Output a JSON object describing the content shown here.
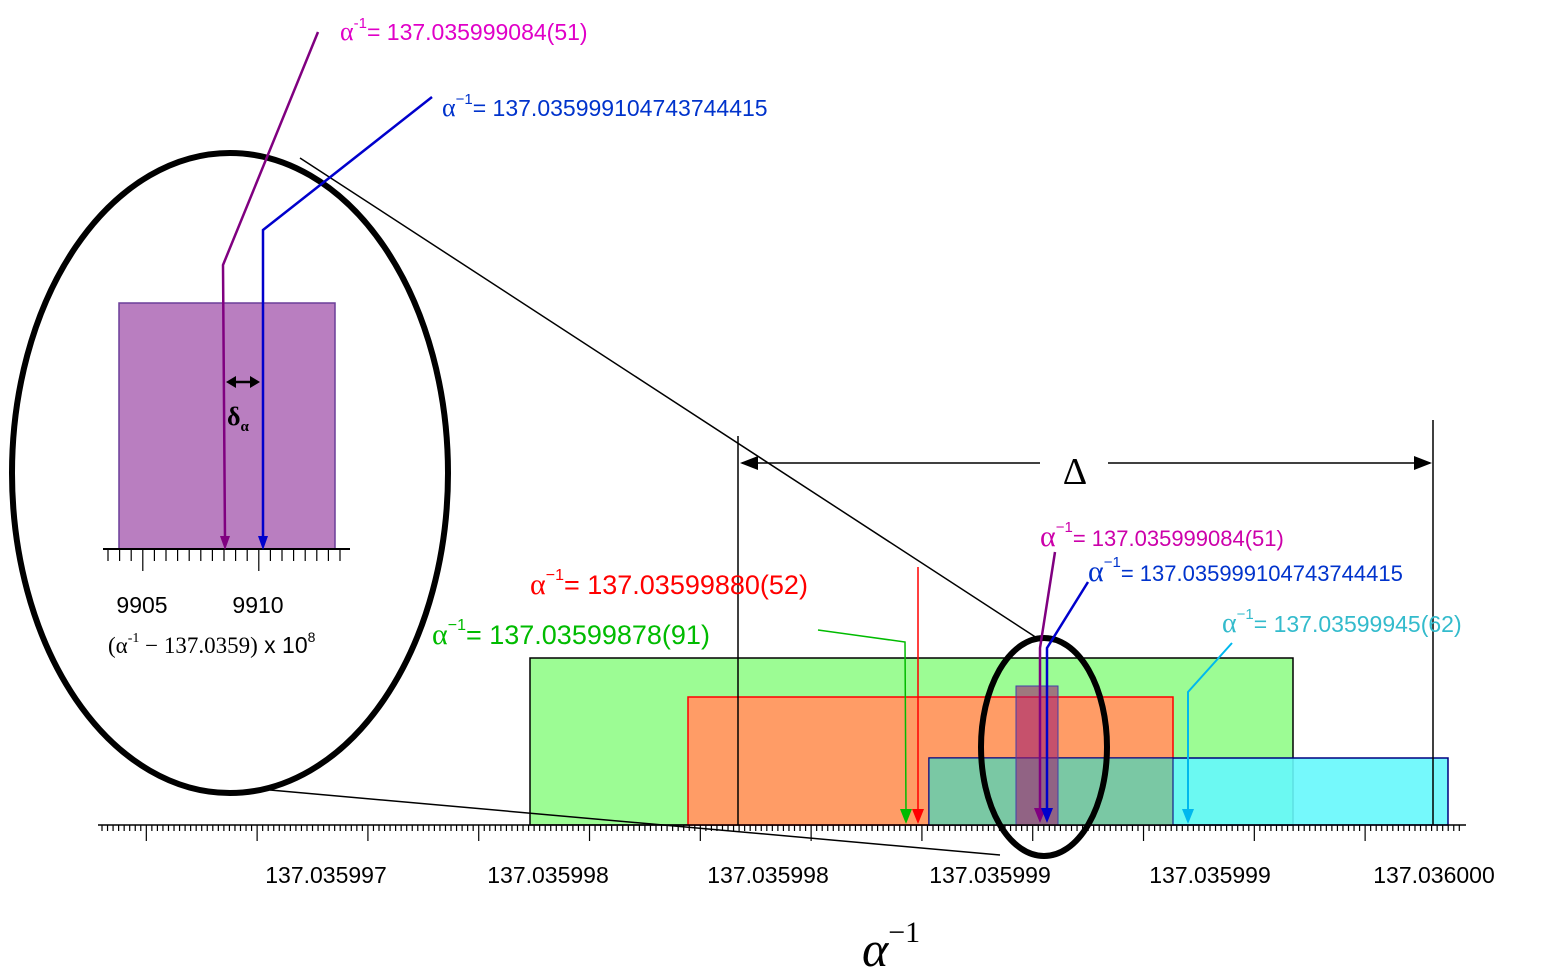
{
  "axis": {
    "tick_labels": [
      "137.035997",
      "137.035998",
      "137.035998",
      "137.035999",
      "137.035999",
      "137.036000"
    ],
    "title": "α",
    "title_exponent": "−1"
  },
  "measurements": [
    {
      "symbol": "α",
      "exponent": "-1",
      "value": "= 137.035999084(51)",
      "color": "#e000c8"
    },
    {
      "symbol": "α",
      "exponent": "−1",
      "value": "= 137.035999104743744415",
      "color": "#0033cc"
    },
    {
      "symbol": "α",
      "exponent": "−1",
      "value": "= 137.035999084(51)",
      "color": "#cc00aa"
    },
    {
      "symbol": "α",
      "exponent": "−1",
      "value": "= 137.035999104743744415",
      "color": "#0033cc"
    },
    {
      "symbol": "α",
      "exponent": "−1",
      "value": "= 137.03599880(52)",
      "color": "#ff0000"
    },
    {
      "symbol": "α",
      "exponent": "−1",
      "value": "= 137.03599878(91)",
      "color": "#00bb00"
    },
    {
      "symbol": "α",
      "exponent": "−1",
      "value": "= 137.03599945(62)",
      "color": "#33bbcc"
    }
  ],
  "delta_label": "Δ",
  "inset": {
    "tick_labels": [
      "9905",
      "9910"
    ],
    "delta_symbol": "δ",
    "delta_subscript": "α",
    "axis_formula": "(α",
    "axis_formula_exp": "-1",
    "axis_formula_rest": " − 137.0359)",
    "axis_scale": " x 10",
    "axis_scale_exp": "8"
  },
  "colors": {
    "green_fill": "#9cfc94",
    "orange_fill": "#ff9c66",
    "cyan_fill": "#66f8fc",
    "purple_fill": "#b97ec0",
    "purple_line": "#800080",
    "blue_line": "#0000cc"
  }
}
